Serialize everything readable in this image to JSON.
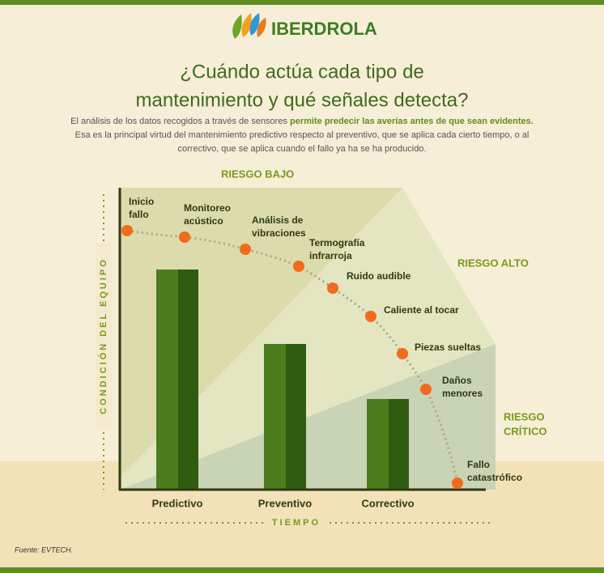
{
  "header": {
    "brand": "IBERDROLA"
  },
  "title": {
    "lines": [
      "¿Cuándo actúa cada tipo de",
      "mantenimiento y qué señales detecta?"
    ]
  },
  "intro": {
    "line1": {
      "text": "El análisis de los datos recogidos a través de sensores",
      "highlight": "permite predecir las averías antes de que sean evidentes."
    },
    "line2": "Esa es la principal virtud del mantenimiento predictivo respecto al preventivo, que se aplica cada cierto tiempo, o al",
    "line3": "correctivo, que se aplica cuando el fallo ya ha se ha producido."
  },
  "zones": {
    "low": "RIESGO BAJO",
    "high": "RIESGO ALTO",
    "critical": [
      "RIESGO",
      "CRÍTICO"
    ]
  },
  "axes": {
    "y": "CONDICIÓN DEL EQUIPO",
    "x": "TIEMPO"
  },
  "signals": [
    [
      "Inicio",
      "fallo"
    ],
    [
      "Monitoreo",
      "acústico"
    ],
    [
      "Análisis de",
      "vibraciones"
    ],
    [
      "Termografía",
      "infrarroja"
    ],
    [
      "Ruido audible"
    ],
    [
      "Caliente al tocar"
    ],
    [
      "Piezas sueltas"
    ],
    [
      "Daños",
      "menores"
    ],
    [
      "Fallo",
      "catastrófico"
    ]
  ],
  "categories": [
    "Predictivo",
    "Preventivo",
    "Correctivo"
  ],
  "source": "Fuente: EVTECH."
}
